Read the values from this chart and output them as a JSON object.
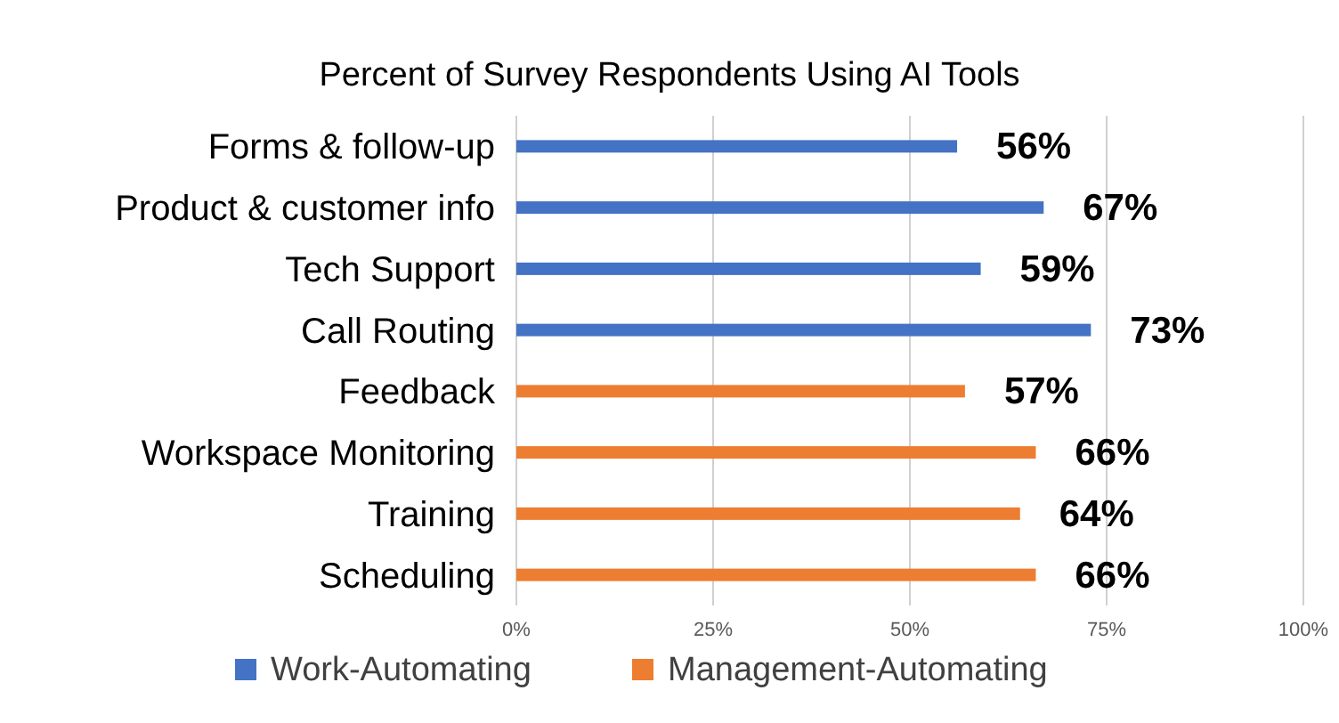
{
  "chart_data": {
    "type": "bar",
    "orientation": "horizontal",
    "title": "Percent of Survey Respondents Using AI Tools",
    "categories": [
      "Forms & follow-up",
      "Product & customer info",
      "Tech Support",
      "Call Routing",
      "Feedback",
      "Workspace Monitoring",
      "Training",
      "Scheduling"
    ],
    "series": [
      {
        "name": "Work-Automating",
        "color": "#4472c4",
        "values": [
          56,
          67,
          59,
          73,
          null,
          null,
          null,
          null
        ],
        "value_labels": [
          "56%",
          "67%",
          "59%",
          "73%",
          null,
          null,
          null,
          null
        ]
      },
      {
        "name": "Management-Automating",
        "color": "#ed7d31",
        "values": [
          null,
          null,
          null,
          null,
          57,
          66,
          64,
          66
        ],
        "value_labels": [
          null,
          null,
          null,
          null,
          "57%",
          "66%",
          "64%",
          "66%"
        ]
      }
    ],
    "xlim": [
      0,
      100
    ],
    "xticks": [
      {
        "value": 0,
        "label": "0%"
      },
      {
        "value": 25,
        "label": "25%"
      },
      {
        "value": 50,
        "label": "50%"
      },
      {
        "value": 75,
        "label": "75%"
      },
      {
        "value": 100,
        "label": "100%"
      }
    ],
    "grid": "x",
    "legend": "bottom"
  }
}
